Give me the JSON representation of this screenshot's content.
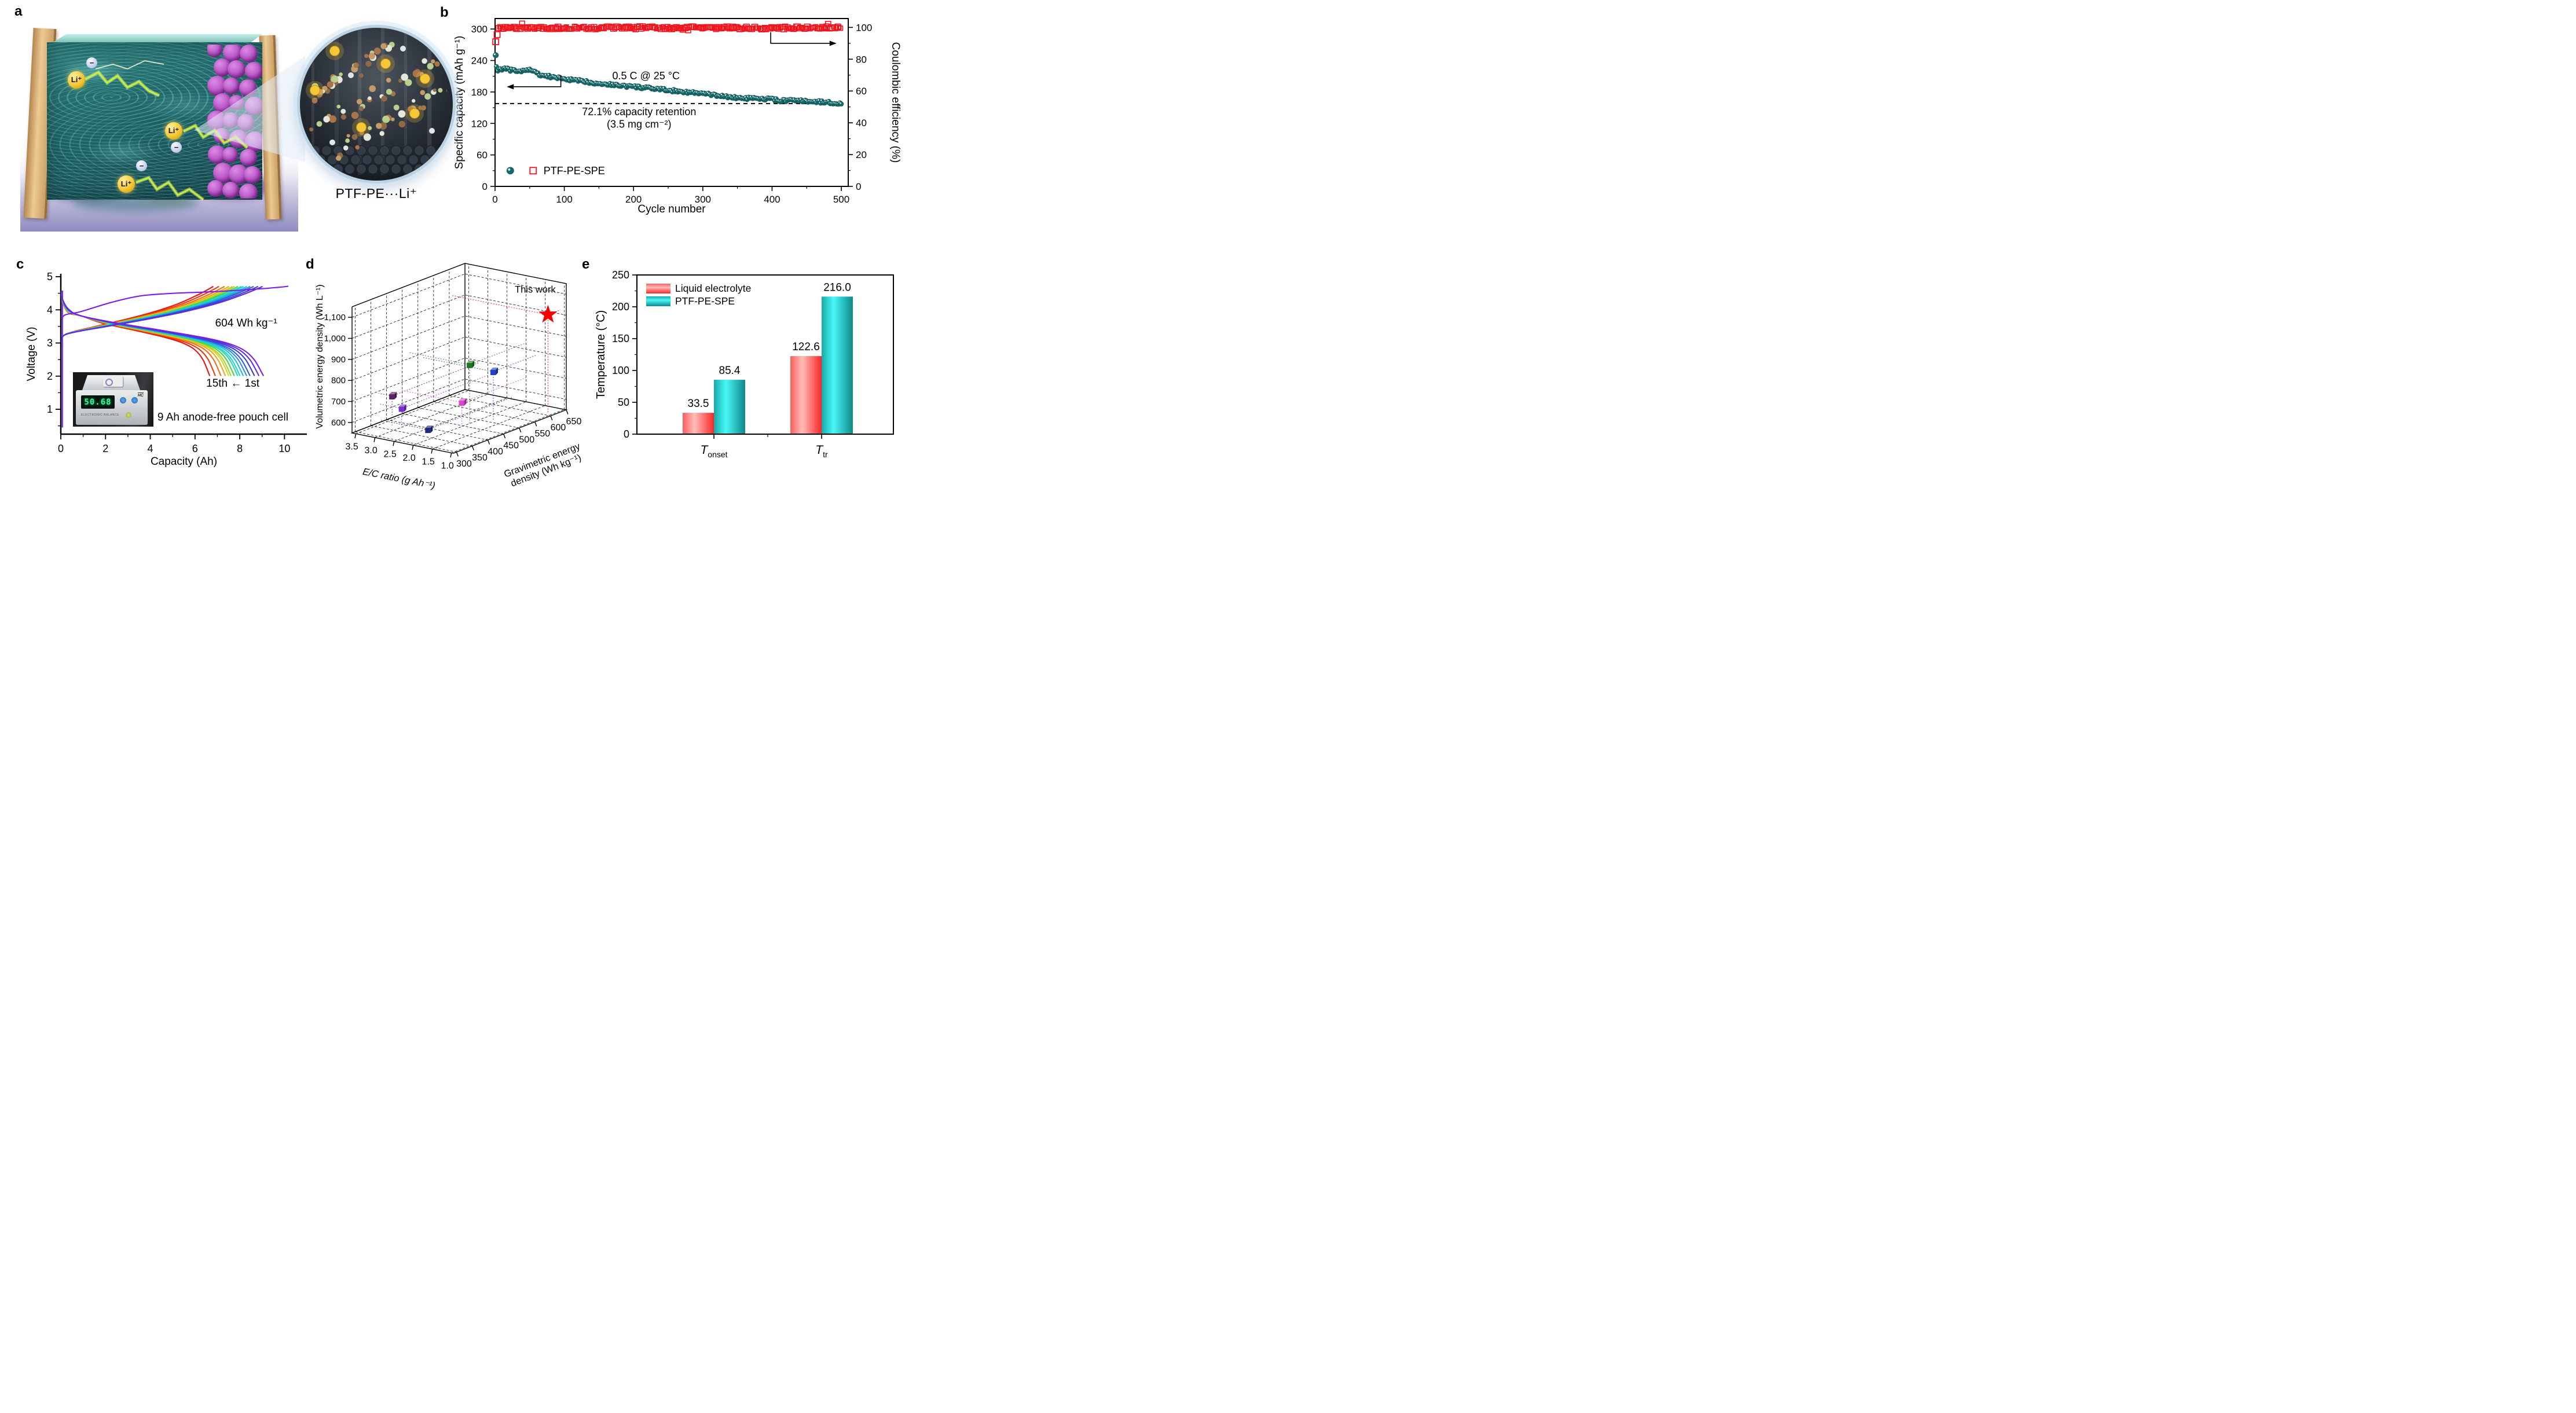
{
  "panels": {
    "a": "a",
    "b": "b",
    "c": "c",
    "d": "d",
    "e": "e"
  },
  "panel_a": {
    "caption": "PTF-PE···Li⁺",
    "li_ion_label": "Li⁺",
    "anion_label": "−"
  },
  "chart_data": [
    {
      "panel": "b",
      "type": "scatter",
      "xlabel": "Cycle number",
      "x_ticks": [
        0,
        100,
        200,
        300,
        400,
        500
      ],
      "xlim": [
        0,
        510
      ],
      "ylabel_left": "Specific capacity (mAh g⁻¹)",
      "y_left_ticks": [
        0,
        60,
        120,
        180,
        240,
        300
      ],
      "ylim_left": [
        0,
        320
      ],
      "ylabel_right": "Coulombic efficiency (%)",
      "y_right_ticks": [
        0,
        20,
        40,
        60,
        80,
        100
      ],
      "ylim_right": [
        0,
        105.6
      ],
      "grid": false,
      "legend": "PTF-PE-SPE",
      "annotations": [
        "0.5 C @ 25 °C",
        "72.1% capacity retention",
        "(3.5 mg cm⁻²)"
      ],
      "retention_line": {
        "y": 158,
        "style": "dashed"
      },
      "series": [
        {
          "name": "specific-capacity",
          "marker": "sphere",
          "color": "#14696b",
          "keypoints": [
            [
              1,
              250
            ],
            [
              2,
              228
            ],
            [
              4,
              221
            ],
            [
              8,
              224
            ],
            [
              15,
              224
            ],
            [
              25,
              221
            ],
            [
              35,
              219
            ],
            [
              45,
              221
            ],
            [
              55,
              222
            ],
            [
              62,
              214
            ],
            [
              70,
              211
            ],
            [
              80,
              209
            ],
            [
              90,
              207
            ],
            [
              100,
              205
            ],
            [
              115,
              202
            ],
            [
              130,
              200
            ],
            [
              145,
              197
            ],
            [
              160,
              195
            ],
            [
              175,
              193
            ],
            [
              190,
              191
            ],
            [
              200,
              190
            ],
            [
              215,
              188
            ],
            [
              230,
              186
            ],
            [
              245,
              184
            ],
            [
              260,
              182
            ],
            [
              275,
              180
            ],
            [
              290,
              178
            ],
            [
              300,
              177
            ],
            [
              315,
              174
            ],
            [
              330,
              172
            ],
            [
              345,
              169
            ],
            [
              360,
              168
            ],
            [
              375,
              167
            ],
            [
              390,
              166
            ],
            [
              400,
              167
            ],
            [
              410,
              163
            ],
            [
              425,
              164
            ],
            [
              440,
              163
            ],
            [
              455,
              162
            ],
            [
              470,
              161
            ],
            [
              480,
              160
            ],
            [
              490,
              159
            ],
            [
              500,
              158
            ]
          ]
        },
        {
          "name": "coulombic-efficiency",
          "marker": "open-square",
          "color": "#f0141f",
          "first_points": [
            [
              1,
              91
            ],
            [
              3,
              95.5
            ]
          ],
          "plateau": 99.7,
          "noise": 1.7
        }
      ]
    },
    {
      "panel": "c",
      "type": "line",
      "xlabel": "Capacity (Ah)",
      "ylabel": "Voltage (V)",
      "x_ticks": [
        0,
        2,
        4,
        6,
        8,
        10
      ],
      "y_ticks": [
        1,
        2,
        3,
        4,
        5
      ],
      "xlim": [
        0,
        11
      ],
      "ylim": [
        0.25,
        5
      ],
      "annotations": [
        "604 Wh kg⁻¹",
        "15th ← 1st",
        "9 Ah anode-free pouch cell"
      ],
      "inset": {
        "display": "50.68",
        "label": "ELECTRONIC BALANCE",
        "brand": "HC"
      },
      "cycles": [
        {
          "cycle": 1,
          "color": "#7d1ee8",
          "discharge_end": 9.05,
          "charge_end": 10.15
        },
        {
          "cycle": 2,
          "color": "#5b2fe0",
          "discharge_end": 8.85,
          "charge_end": 9.0
        },
        {
          "cycle": 3,
          "color": "#3b3bd8",
          "discharge_end": 8.65,
          "charge_end": 8.8
        },
        {
          "cycle": 4,
          "color": "#2f5fd8",
          "discharge_end": 8.45,
          "charge_end": 8.6
        },
        {
          "cycle": 5,
          "color": "#2f8fd8",
          "discharge_end": 8.3,
          "charge_end": 8.45
        },
        {
          "cycle": 6,
          "color": "#22b8e0",
          "discharge_end": 8.15,
          "charge_end": 8.3
        },
        {
          "cycle": 7,
          "color": "#18d8d8",
          "discharge_end": 8.0,
          "charge_end": 8.15
        },
        {
          "cycle": 8,
          "color": "#2fd8a0",
          "discharge_end": 7.9,
          "charge_end": 8.05
        },
        {
          "cycle": 9,
          "color": "#48d048",
          "discharge_end": 7.75,
          "charge_end": 7.9
        },
        {
          "cycle": 10,
          "color": "#a0d830",
          "discharge_end": 7.6,
          "charge_end": 7.75
        },
        {
          "cycle": 11,
          "color": "#e0d020",
          "discharge_end": 7.5,
          "charge_end": 7.65
        },
        {
          "cycle": 12,
          "color": "#f0a818",
          "discharge_end": 7.35,
          "charge_end": 7.5
        },
        {
          "cycle": 13,
          "color": "#f07010",
          "discharge_end": 7.15,
          "charge_end": 7.3
        },
        {
          "cycle": 14,
          "color": "#e83c0c",
          "discharge_end": 6.9,
          "charge_end": 7.05
        },
        {
          "cycle": 15,
          "color": "#e81010",
          "discharge_end": 6.65,
          "charge_end": 6.8
        }
      ]
    },
    {
      "panel": "d",
      "type": "scatter3d",
      "zlabel": "Volumetric energy density (Wh L⁻¹)",
      "z_ticks": [
        600,
        700,
        800,
        900,
        1000,
        1100
      ],
      "z_tick_labels": [
        "600",
        "700",
        "800",
        "900",
        "1,000",
        "1,100"
      ],
      "zlim": [
        550,
        1150
      ],
      "xlabel": "E/C ratio (g Ah⁻¹)",
      "x_ticks": [
        3.5,
        3.0,
        2.5,
        2.0,
        1.5,
        1.0
      ],
      "x_tick_labels": [
        "3.5",
        "3.0",
        "2.5",
        "2.0",
        "1.5",
        "1.0"
      ],
      "xlim": [
        3.6,
        0.95
      ],
      "ylabel_lines": [
        "Gravimetric energy",
        "density (Wh kg⁻¹)"
      ],
      "y_ticks": [
        300,
        350,
        400,
        450,
        500,
        550,
        600,
        650
      ],
      "ylim": [
        290,
        650
      ],
      "points": [
        {
          "color": "#5e2066",
          "ec": 3.25,
          "grav": 375,
          "vol": 690
        },
        {
          "color": "#7a2fd0",
          "ec": 3.0,
          "grav": 375,
          "vol": 640
        },
        {
          "color": "#1c2a80",
          "ec": 2.35,
          "grav": 380,
          "vol": 560
        },
        {
          "color": "#1f7a1f",
          "ec": 2.0,
          "grav": 470,
          "vol": 830
        },
        {
          "color": "#2040cc",
          "ec": 1.75,
          "grav": 515,
          "vol": 780
        },
        {
          "color": "#d846cc",
          "ec": 2.0,
          "grav": 445,
          "vol": 665
        }
      ],
      "highlight": {
        "label": "This work",
        "color": "#f40000",
        "ec": 1.1,
        "grav": 610,
        "vol": 1020
      }
    },
    {
      "panel": "e",
      "type": "bar",
      "ylabel": "Temperature (°C)",
      "y_ticks": [
        0,
        50,
        100,
        150,
        200,
        250
      ],
      "ylim": [
        0,
        250
      ],
      "categories": [
        {
          "base": "T",
          "sub": "onset"
        },
        {
          "base": "T",
          "sub": "tr"
        }
      ],
      "series": [
        {
          "name": "Liquid electrolyte",
          "colors": [
            "#f86060",
            "#ffbcb8",
            "#f82828"
          ],
          "values": [
            33.5,
            122.6
          ]
        },
        {
          "name": "PTF-PE-SPE",
          "colors": [
            "#18a8a8",
            "#48f8f8",
            "#0e8888"
          ],
          "values": [
            85.4,
            216.0
          ]
        }
      ],
      "value_labels": [
        "33.5",
        "85.4",
        "122.6",
        "216.0"
      ]
    }
  ]
}
